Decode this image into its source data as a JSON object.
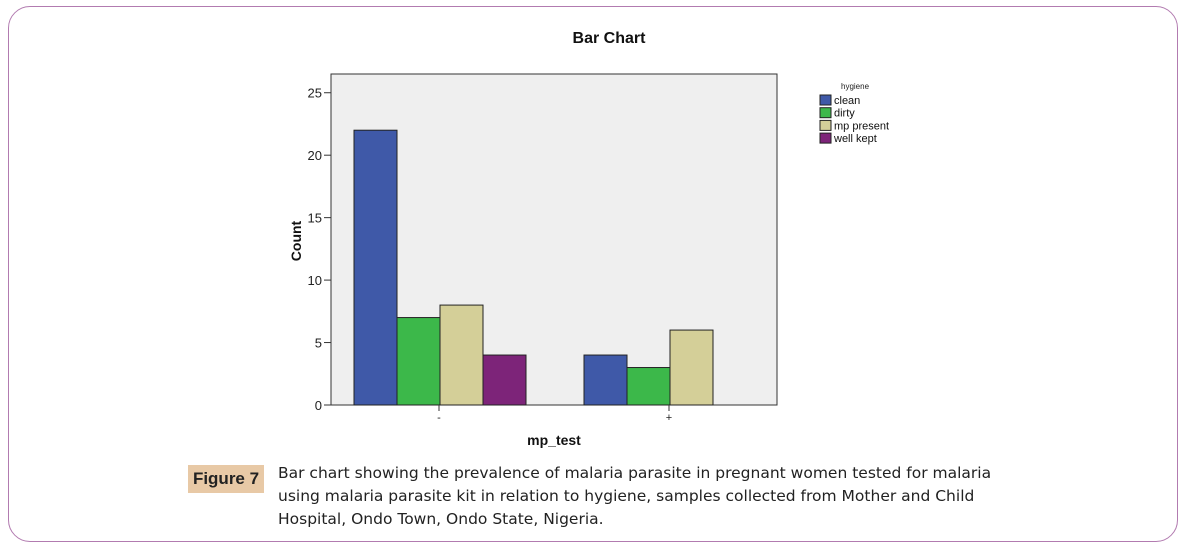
{
  "chart_data": {
    "type": "bar",
    "title": "Bar Chart",
    "xlabel": "mp_test",
    "ylabel": "Count",
    "categories": [
      "-",
      "+"
    ],
    "series": [
      {
        "name": "clean",
        "values": [
          22,
          4
        ]
      },
      {
        "name": "dirty",
        "values": [
          7,
          3
        ]
      },
      {
        "name": "mp present",
        "values": [
          8,
          6
        ]
      },
      {
        "name": "well kept",
        "values": [
          4,
          0
        ]
      }
    ],
    "colors": [
      "#3f59a8",
      "#3cb84a",
      "#d4cf98",
      "#7d2479"
    ],
    "ylim": [
      0,
      26.5
    ],
    "yticks": [
      0,
      5,
      10,
      15,
      20,
      25
    ],
    "legend_title": "hygiene",
    "legend_position": "top-right",
    "plot_background": "#efefef",
    "grid": false
  },
  "caption": {
    "label": "Figure 7",
    "text": "Bar chart showing the prevalence of malaria parasite in pregnant women tested for malaria using malaria parasite kit in relation to hygiene, samples collected from Mother and Child Hospital, Ondo Town, Ondo State, Nigeria."
  }
}
